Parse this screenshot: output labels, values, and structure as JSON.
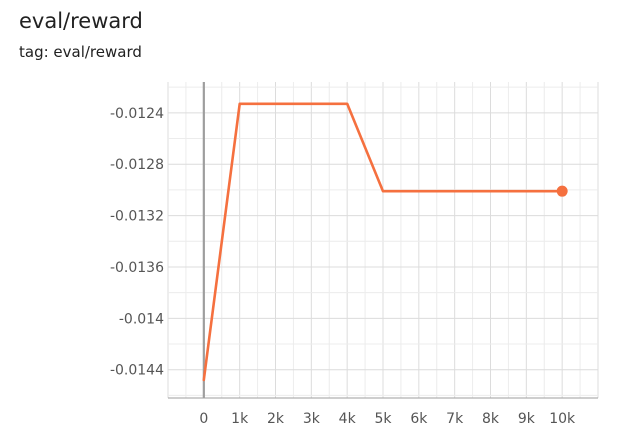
{
  "chart_data": {
    "type": "line",
    "title": "eval/reward",
    "subtitle": "tag: eval/reward",
    "xlabel": "",
    "ylabel": "",
    "x_ticks": [
      0,
      1000,
      2000,
      3000,
      4000,
      5000,
      6000,
      7000,
      8000,
      9000,
      10000
    ],
    "x_tick_labels": [
      "0",
      "1k",
      "2k",
      "3k",
      "4k",
      "5k",
      "6k",
      "7k",
      "8k",
      "9k",
      "10k"
    ],
    "y_ticks": [
      -0.0124,
      -0.0128,
      -0.0132,
      -0.0136,
      -0.014,
      -0.0144
    ],
    "y_tick_labels": [
      "-0.0124",
      "-0.0128",
      "-0.0132",
      "-0.0136",
      "-0.014",
      "-0.0144"
    ],
    "xlim": [
      -1000,
      11000
    ],
    "ylim": [
      -0.01462,
      -0.01216
    ],
    "grid": true,
    "series": [
      {
        "color": "#f5703f",
        "x": [
          0,
          1000,
          4000,
          5000,
          10000
        ],
        "y": [
          -0.01448,
          -0.01233,
          -0.01233,
          -0.01301,
          -0.01301
        ]
      }
    ]
  }
}
